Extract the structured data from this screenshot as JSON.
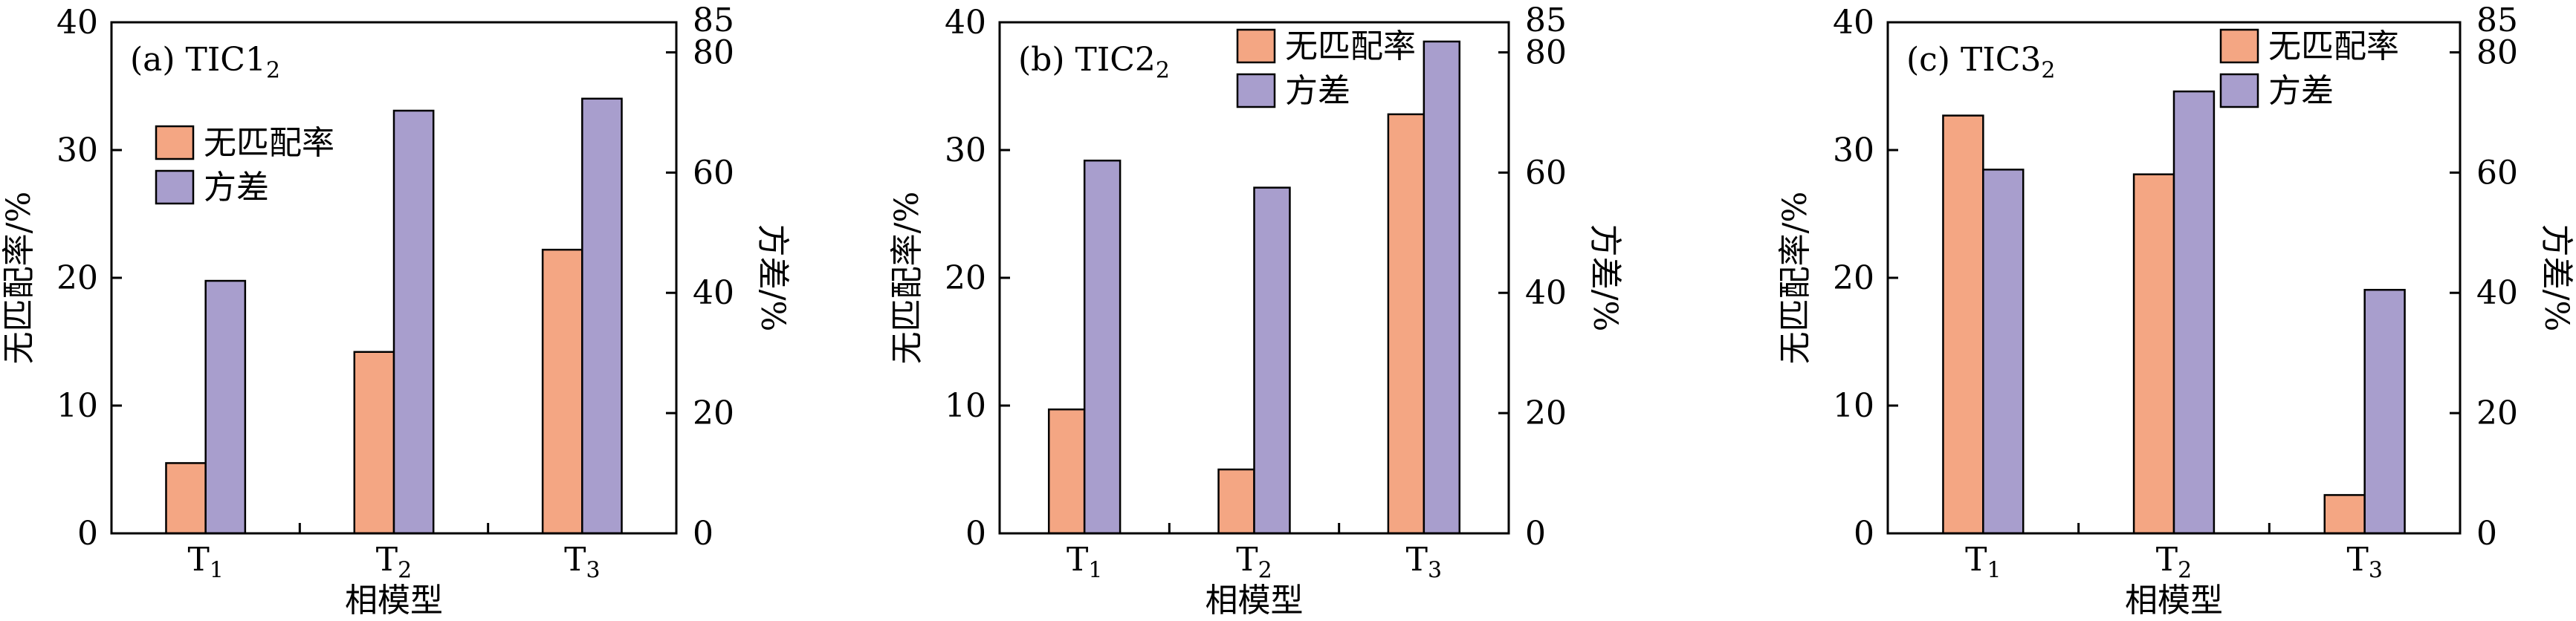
{
  "colors": {
    "mismatch": "#F4A683",
    "variance": "#A89ECD",
    "axis": "#000000"
  },
  "chart_data": [
    {
      "type": "bar",
      "panel_label": "(a) TIC1",
      "panel_sub": "2",
      "categories": [
        {
          "base": "T",
          "sub": "1"
        },
        {
          "base": "T",
          "sub": "2"
        },
        {
          "base": "T",
          "sub": "3"
        }
      ],
      "xlabel": "相模型",
      "ylabel": "无匹配率/%",
      "y2label": "方差/%",
      "ylim": [
        0,
        40
      ],
      "yticks": [
        0,
        10,
        20,
        30,
        40
      ],
      "y2lim": [
        0,
        85
      ],
      "y2ticks": [
        0,
        20,
        40,
        60,
        80,
        85
      ],
      "legend_position": "upper-left",
      "series": [
        {
          "name": "无匹配率",
          "axis": "left",
          "values": [
            5.5,
            14.2,
            22.2
          ]
        },
        {
          "name": "方差",
          "axis": "right",
          "values": [
            42,
            70.3,
            72.3
          ]
        }
      ]
    },
    {
      "type": "bar",
      "panel_label": "(b) TIC2",
      "panel_sub": "2",
      "categories": [
        {
          "base": "T",
          "sub": "1"
        },
        {
          "base": "T",
          "sub": "2"
        },
        {
          "base": "T",
          "sub": "3"
        }
      ],
      "xlabel": "相模型",
      "ylabel": "无匹配率/%",
      "y2label": "方差/%",
      "ylim": [
        0,
        40
      ],
      "yticks": [
        0,
        10,
        20,
        30,
        40
      ],
      "y2lim": [
        0,
        85
      ],
      "y2ticks": [
        0,
        20,
        40,
        60,
        80,
        85
      ],
      "legend_position": "top-center",
      "series": [
        {
          "name": "无匹配率",
          "axis": "left",
          "values": [
            9.7,
            5.0,
            32.8
          ]
        },
        {
          "name": "方差",
          "axis": "right",
          "values": [
            62,
            57.5,
            81.8
          ]
        }
      ]
    },
    {
      "type": "bar",
      "panel_label": "(c) TIC3",
      "panel_sub": "2",
      "categories": [
        {
          "base": "T",
          "sub": "1"
        },
        {
          "base": "T",
          "sub": "2"
        },
        {
          "base": "T",
          "sub": "3"
        }
      ],
      "xlabel": "相模型",
      "ylabel": "无匹配率/%",
      "y2label": "方差/%",
      "ylim": [
        0,
        40
      ],
      "yticks": [
        0,
        10,
        20,
        30,
        40
      ],
      "y2lim": [
        0,
        85
      ],
      "y2ticks": [
        0,
        20,
        40,
        60,
        80,
        85
      ],
      "legend_position": "top-right",
      "series": [
        {
          "name": "无匹配率",
          "axis": "left",
          "values": [
            32.7,
            28.1,
            3.0
          ]
        },
        {
          "name": "方差",
          "axis": "right",
          "values": [
            60.5,
            73.5,
            40.5
          ]
        }
      ]
    }
  ]
}
